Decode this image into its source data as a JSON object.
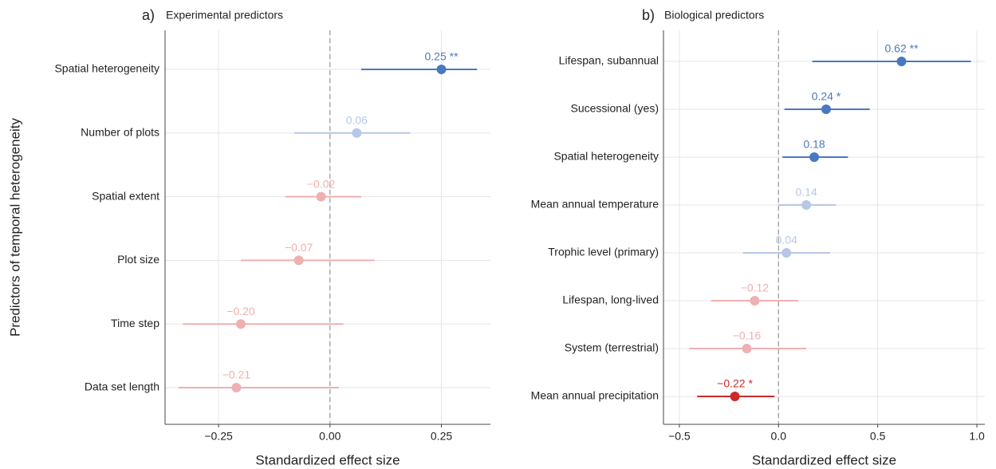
{
  "chart_data": [
    {
      "type": "forest",
      "tag": "a)",
      "title": "Experimental predictors",
      "y_label": "Predictors of temporal heterogeneity",
      "x_label": "Standardized effect size",
      "categories": [
        "Spatial heterogeneity",
        "Number of plots",
        "Spatial extent",
        "Plot size",
        "Time step",
        "Data set length"
      ],
      "values": [
        0.25,
        0.06,
        -0.02,
        -0.07,
        -0.2,
        -0.21
      ],
      "value_labels": [
        "0.25 **",
        "0.06",
        "−0.02",
        "−0.07",
        "−0.20",
        "−0.21"
      ],
      "low": [
        0.07,
        -0.08,
        -0.1,
        -0.2,
        -0.33,
        -0.34
      ],
      "high": [
        0.33,
        0.18,
        0.07,
        0.1,
        0.03,
        0.02
      ],
      "colors": [
        "#4a78c0",
        "#b6c8e6",
        "#eeb0b0",
        "#eeb0b0",
        "#eeb0b0",
        "#eeb0b0"
      ],
      "xlim": [
        -0.37,
        0.36
      ],
      "xticks": [
        {
          "value": -0.25,
          "label": "−0.25"
        },
        {
          "value": 0,
          "label": "0.00"
        },
        {
          "value": 0.25,
          "label": "0.25"
        }
      ],
      "reference_line": 0,
      "grid": true
    },
    {
      "type": "forest",
      "tag": "b)",
      "title": "Biological predictors",
      "x_label": "Standardized effect size",
      "categories": [
        "Lifespan, subannual",
        "Sucessional (yes)",
        "Spatial heterogeneity",
        "Mean annual temperature",
        "Trophic level (primary)",
        "Lifespan, long-lived",
        "System (terrestrial)",
        "Mean annual precipitation"
      ],
      "values": [
        0.62,
        0.24,
        0.18,
        0.14,
        0.04,
        -0.12,
        -0.16,
        -0.22
      ],
      "value_labels": [
        "0.62 **",
        "0.24 *",
        "0.18",
        "0.14",
        "0.04",
        "−0.12",
        "−0.16",
        "−0.22 *"
      ],
      "low": [
        0.17,
        0.03,
        0.02,
        0,
        -0.18,
        -0.34,
        -0.45,
        -0.41
      ],
      "high": [
        0.97,
        0.46,
        0.35,
        0.29,
        0.26,
        0.1,
        0.14,
        -0.02
      ],
      "colors": [
        "#4a78c0",
        "#4a78c0",
        "#4a78c0",
        "#b6c8e6",
        "#b6c8e6",
        "#eeb0b0",
        "#eeb0b0",
        "#cc2a2a"
      ],
      "xlim": [
        -0.58,
        1.04
      ],
      "xticks": [
        {
          "value": -0.5,
          "label": "−0.5"
        },
        {
          "value": 0,
          "label": "0.0"
        },
        {
          "value": 0.5,
          "label": "0.5"
        },
        {
          "value": 1,
          "label": "1.0"
        }
      ],
      "reference_line": 0,
      "grid": true
    }
  ]
}
